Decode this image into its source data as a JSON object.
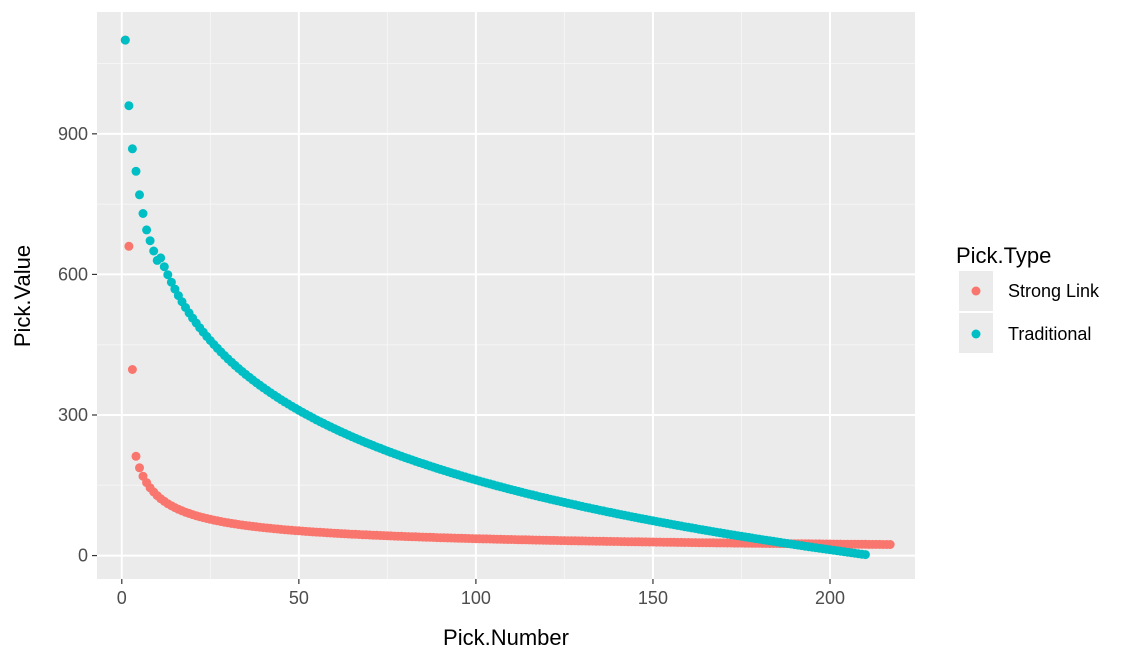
{
  "chart_data": {
    "type": "scatter",
    "xlabel": "Pick.Number",
    "ylabel": "Pick.Value",
    "xlim": [
      -7,
      224
    ],
    "ylim": [
      -50,
      1160
    ],
    "x_ticks": [
      0,
      50,
      100,
      150,
      200
    ],
    "x_minor_ticks": [
      25,
      75,
      125,
      175
    ],
    "y_ticks": [
      0,
      300,
      600,
      900
    ],
    "y_minor_ticks": [
      150,
      450,
      750,
      1050
    ],
    "x_tick_labels": [
      "0",
      "50",
      "100",
      "150",
      "200"
    ],
    "y_tick_labels": [
      "0",
      "300",
      "600",
      "900"
    ],
    "grid": true,
    "legend": {
      "title": "Pick.Type",
      "position": "right"
    },
    "series": [
      {
        "name": "Strong Link",
        "color": "#f8766d",
        "points": [
          [
            1,
            1100
          ],
          [
            2,
            660
          ],
          [
            3,
            397
          ],
          {
            "curve": "power",
            "a": 454,
            "b": -0.55,
            "x_start": 4,
            "x_end": 217,
            "step": 1
          }
        ]
      },
      {
        "name": "Traditional",
        "color": "#00bfc4",
        "points": [
          [
            1,
            1100
          ],
          [
            2,
            960
          ],
          [
            3,
            868
          ],
          [
            4,
            820
          ],
          [
            5,
            770
          ],
          [
            6,
            730
          ],
          [
            7,
            695
          ],
          [
            8,
            672
          ],
          [
            9,
            650
          ],
          [
            10,
            630
          ],
          {
            "curve": "log",
            "a": 1150,
            "b": 214.7,
            "x_start": 11,
            "x_end": 210,
            "step": 1
          }
        ]
      }
    ]
  }
}
